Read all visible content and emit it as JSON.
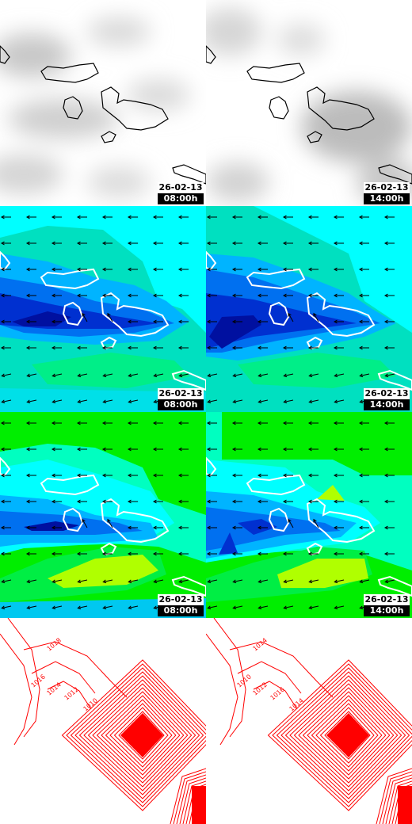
{
  "panels": [
    {
      "row": "cloud",
      "date": "26-02-13",
      "time": "08:00h"
    },
    {
      "row": "cloud",
      "date": "26-02-13",
      "time": "14:00h"
    },
    {
      "row": "wind-low",
      "date": "26-02-13",
      "time": "08:00h"
    },
    {
      "row": "wind-low",
      "date": "26-02-13",
      "time": "14:00h"
    },
    {
      "row": "wind-high",
      "date": "26-02-13",
      "time": "08:00h"
    },
    {
      "row": "wind-high",
      "date": "26-02-13",
      "time": "14:00h"
    },
    {
      "row": "pressure"
    },
    {
      "row": "pressure"
    }
  ],
  "pressure_labels": {
    "left": [
      "1018",
      "1016",
      "1014",
      "1012",
      "1010"
    ],
    "right": [
      "1014",
      "1010",
      "1012",
      "1016",
      "1014"
    ]
  },
  "colors": {
    "wind_cyan": "#00ffff",
    "wind_teal": "#00e0c0",
    "wind_blue1": "#00b4ff",
    "wind_blue2": "#0070f0",
    "wind_blue3": "#0030d0",
    "wind_navy": "#0010a0",
    "wind_green": "#00ee00",
    "wind_lime": "#b0ff00",
    "isobar_red": "#ff0000"
  }
}
